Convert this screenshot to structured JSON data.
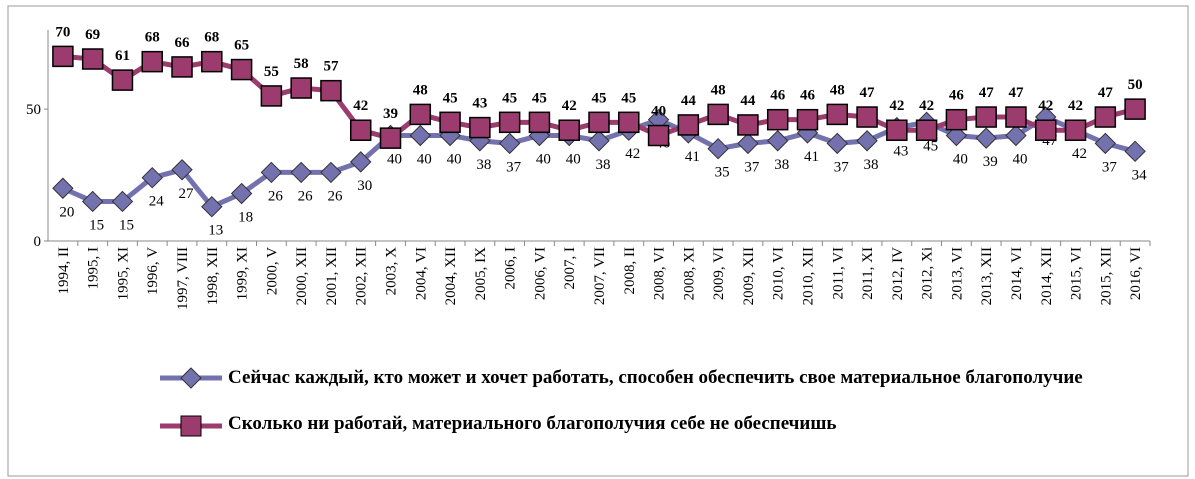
{
  "chart_data": {
    "type": "line",
    "categories": [
      "1994, II",
      "1995, I",
      "1995, XI",
      "1996, V",
      "1997, VIII",
      "1998, XII",
      "1999, XI",
      "2000, V",
      "2000, XII",
      "2001, XII",
      "2002, XII",
      "2003, X",
      "2004, VI",
      "2004, XII",
      "2005, IX",
      "2006, I",
      "2006, VI",
      "2007, I",
      "2007, VII",
      "2008, II",
      "2008, VI",
      "2008, XI",
      "2009, VI",
      "2009, XII",
      "2010, VI",
      "2010, XII",
      "2011, VI",
      "2011, XI",
      "2012, IV",
      "2012, Xi",
      "2013, VI",
      "2013, XII",
      "2014, VI",
      "2014, XII",
      "2015, VI",
      "2015, XII",
      "2016, VI"
    ],
    "series": [
      {
        "name": "Сейчас каждый, кто может и хочет работать, способен обеспечить свое материальное благополучие",
        "color": "#7472ae",
        "marker": "diamond",
        "values": [
          20,
          15,
          15,
          24,
          27,
          13,
          18,
          26,
          26,
          26,
          30,
          40,
          40,
          40,
          38,
          37,
          40,
          40,
          38,
          42,
          46,
          41,
          35,
          37,
          38,
          41,
          37,
          38,
          43,
          45,
          40,
          39,
          40,
          47,
          42,
          37,
          34
        ]
      },
      {
        "name": "Сколько ни работай, материального благополучия себе не обеспечишь",
        "color": "#9b3b6e",
        "marker": "square",
        "values": [
          70,
          69,
          61,
          68,
          66,
          68,
          65,
          55,
          58,
          57,
          42,
          39,
          48,
          45,
          43,
          45,
          45,
          42,
          45,
          45,
          40,
          44,
          48,
          44,
          46,
          46,
          48,
          47,
          42,
          42,
          46,
          47,
          47,
          42,
          42,
          47,
          50
        ]
      }
    ],
    "ylim": [
      0,
      80
    ],
    "yticks": [
      0,
      50
    ],
    "grid": false
  }
}
